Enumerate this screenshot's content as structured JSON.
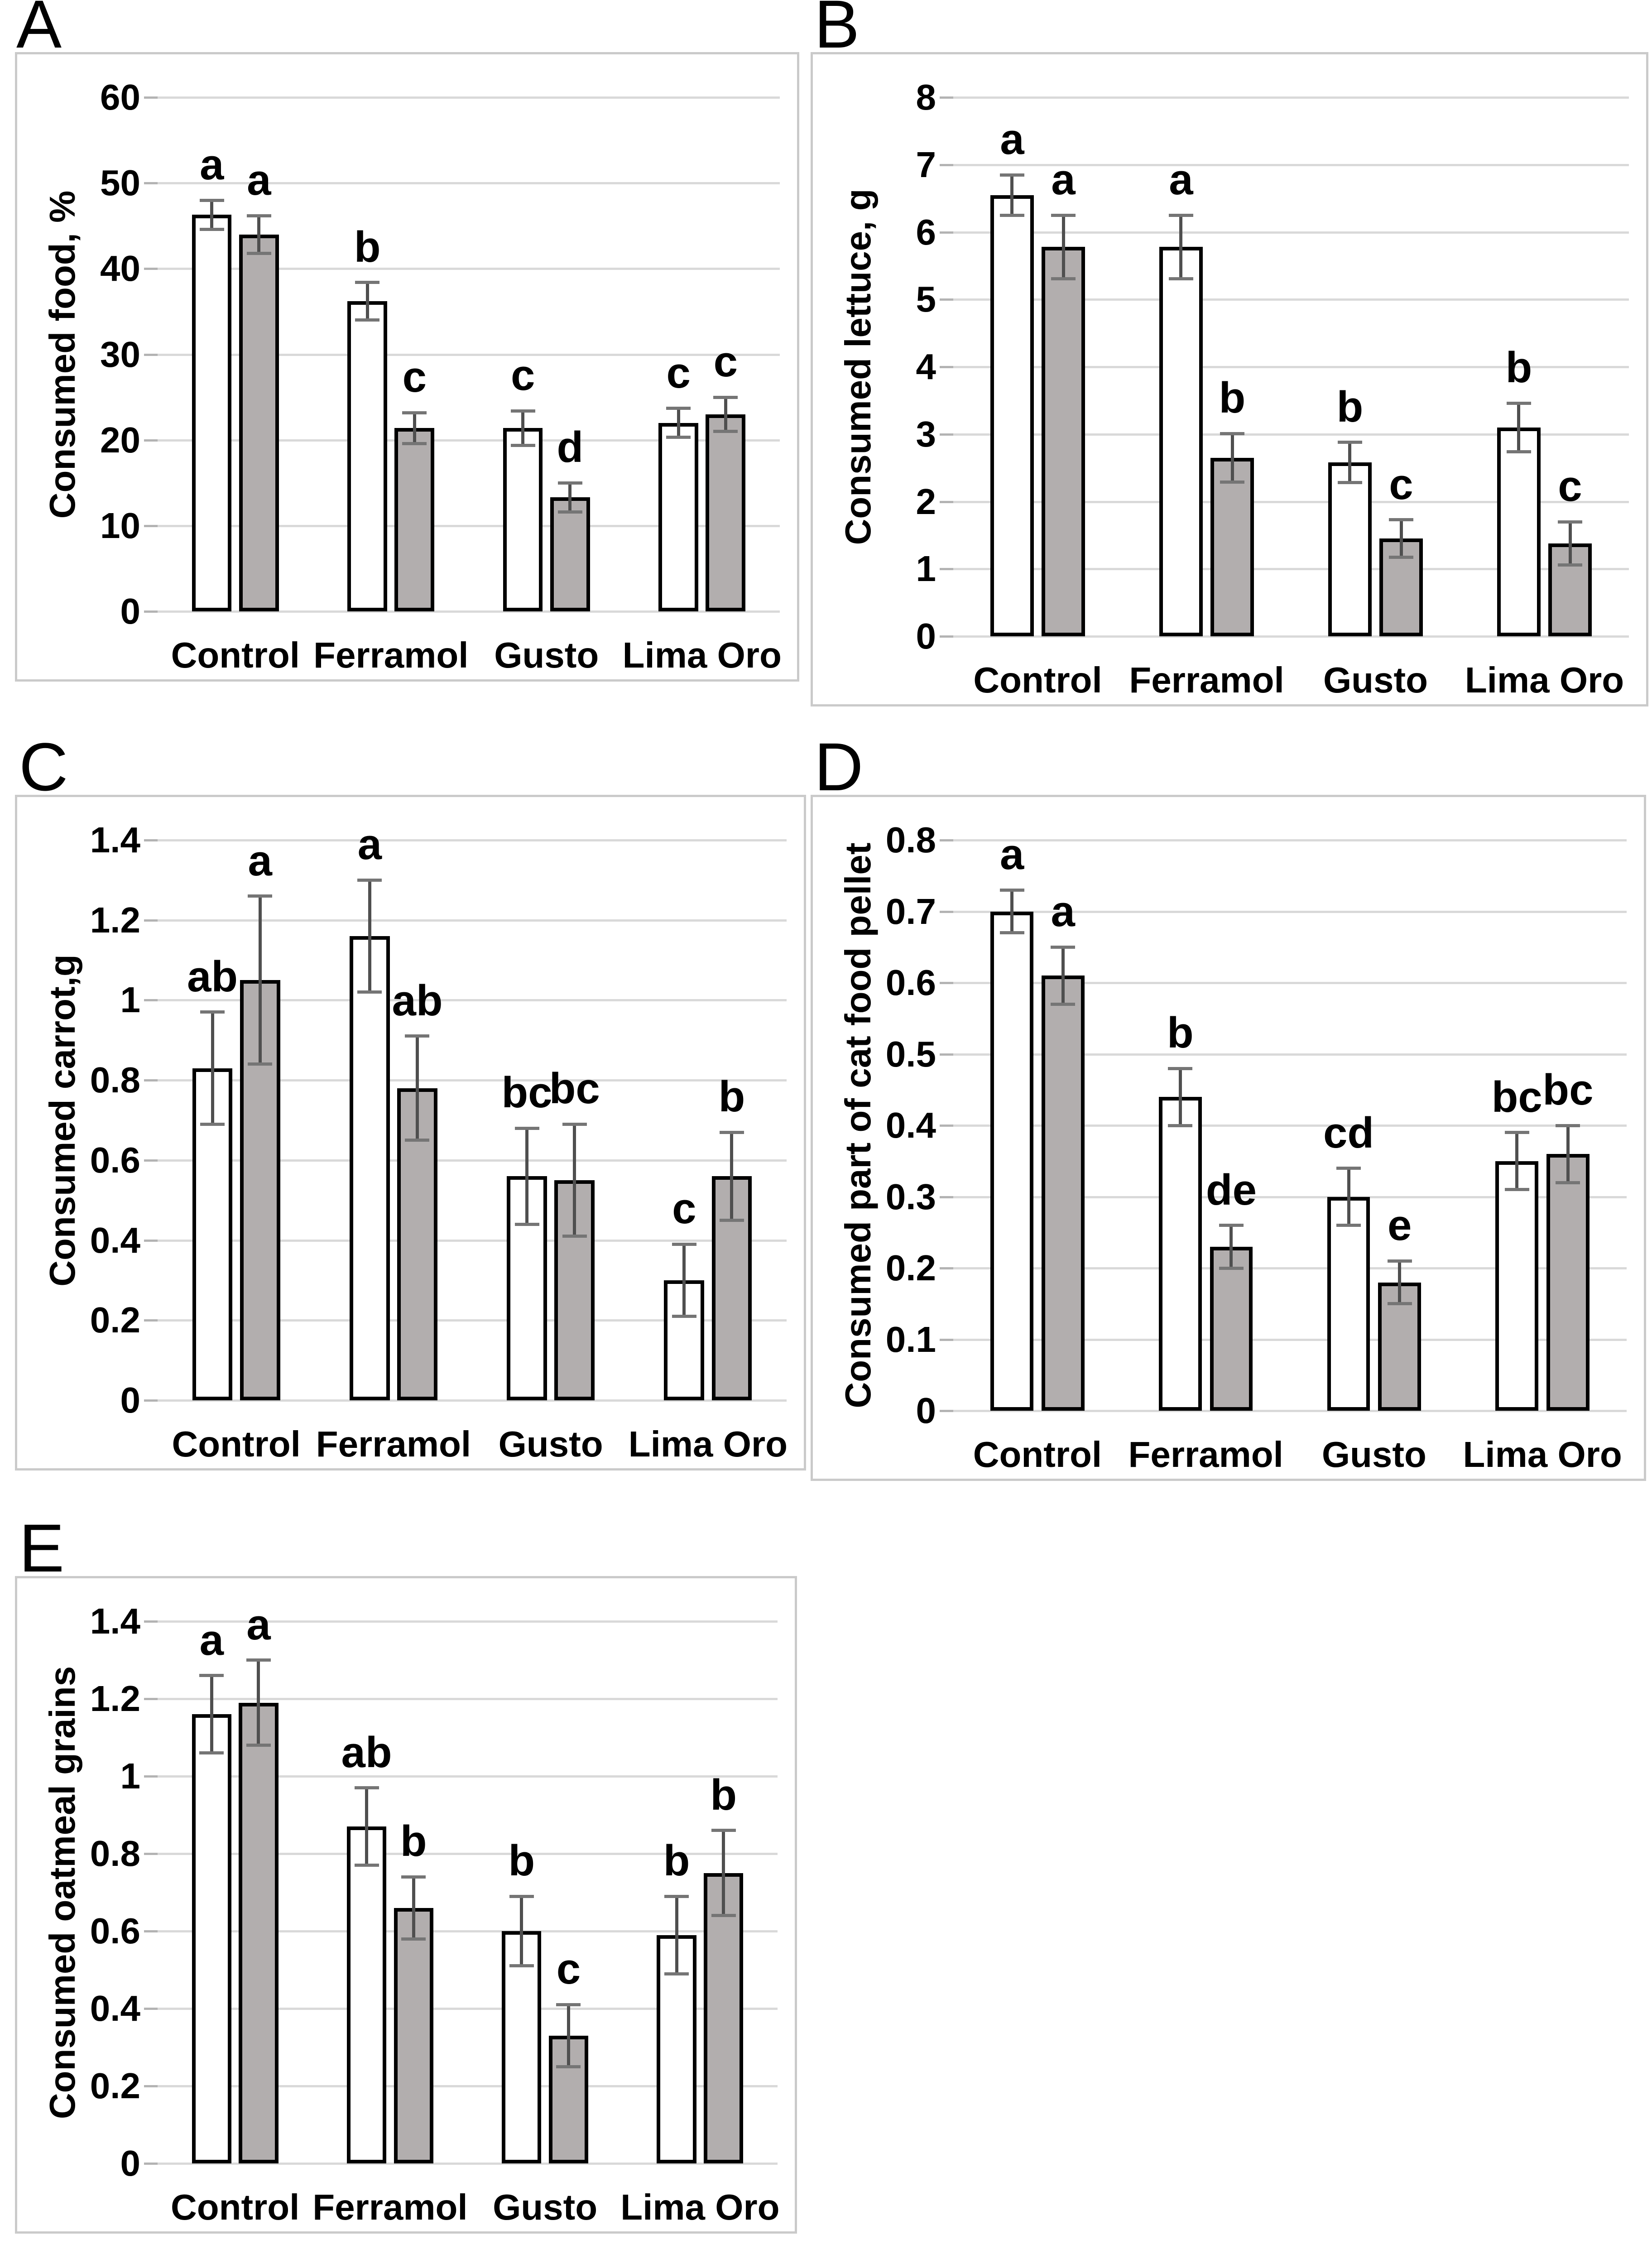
{
  "figure": {
    "panel_letters": [
      "A",
      "B",
      "C",
      "D",
      "E"
    ]
  },
  "style_colors": {
    "background": "#ffffff",
    "text": "#000000",
    "panel_border": "#cacaca",
    "gridline": "#d9d9d9",
    "tick_mark": "#b3b3b3",
    "bar_border": "#000000",
    "bar_white_fill": "#ffffff",
    "bar_gray_fill": "#b2aeae",
    "error_line": "#4f4f4f",
    "error_cap": "#757575"
  },
  "chart_data": [
    {
      "panel": "A",
      "type": "bar",
      "title": "",
      "xlabel": "",
      "ylabel": "Consumed food, %",
      "ylim": [
        0,
        60
      ],
      "ytick_labels": [
        "0",
        "10",
        "20",
        "30",
        "40",
        "50",
        "60"
      ],
      "grid": true,
      "legend": false,
      "categories": [
        "Control",
        "Ferramol",
        "Gusto",
        "Lima Oro"
      ],
      "series": [
        {
          "name": "white bars",
          "fill": "#ffffff",
          "values": [
            46.3,
            36.2,
            21.4,
            22.0
          ],
          "errors": [
            1.7,
            2.2,
            2.0,
            1.7
          ],
          "sig_letters": [
            "a",
            "b",
            "c",
            "c"
          ]
        },
        {
          "name": "gray bars",
          "fill": "#b2aeae",
          "values": [
            44.0,
            21.4,
            13.3,
            23.0
          ],
          "errors": [
            2.2,
            1.8,
            1.7,
            2.0
          ],
          "sig_letters": [
            "a",
            "c",
            "d",
            "c"
          ]
        }
      ]
    },
    {
      "panel": "B",
      "type": "bar",
      "title": "",
      "xlabel": "",
      "ylabel": "Consumed lettuce, g",
      "ylim": [
        0,
        8
      ],
      "ytick_labels": [
        "0",
        "1",
        "2",
        "3",
        "4",
        "5",
        "6",
        "7",
        "8"
      ],
      "grid": true,
      "legend": false,
      "categories": [
        "Control",
        "Ferramol",
        "Gusto",
        "Lima Oro"
      ],
      "series": [
        {
          "name": "white bars",
          "fill": "#ffffff",
          "values": [
            6.55,
            5.78,
            2.58,
            3.1
          ],
          "errors": [
            0.3,
            0.47,
            0.3,
            0.36
          ],
          "sig_letters": [
            "a",
            "a",
            "b",
            "b"
          ]
        },
        {
          "name": "gray bars",
          "fill": "#b2aeae",
          "values": [
            5.78,
            2.65,
            1.45,
            1.38
          ],
          "errors": [
            0.47,
            0.36,
            0.28,
            0.32
          ],
          "sig_letters": [
            "a",
            "b",
            "c",
            "c"
          ]
        }
      ]
    },
    {
      "panel": "C",
      "type": "bar",
      "title": "",
      "xlabel": "",
      "ylabel": "Consumed carrot,g",
      "ylim": [
        0,
        1.4
      ],
      "ytick_labels": [
        "0",
        "0.2",
        "0.4",
        "0.6",
        "0.8",
        "1",
        "1.2",
        "1.4"
      ],
      "grid": true,
      "legend": false,
      "categories": [
        "Control",
        "Ferramol",
        "Gusto",
        "Lima Oro"
      ],
      "series": [
        {
          "name": "white bars",
          "fill": "#ffffff",
          "values": [
            0.83,
            1.16,
            0.56,
            0.3
          ],
          "errors": [
            0.14,
            0.14,
            0.12,
            0.09
          ],
          "sig_letters": [
            "ab",
            "a",
            "bc",
            "c"
          ]
        },
        {
          "name": "gray bars",
          "fill": "#b2aeae",
          "values": [
            1.05,
            0.78,
            0.55,
            0.56
          ],
          "errors": [
            0.21,
            0.13,
            0.14,
            0.11
          ],
          "sig_letters": [
            "a",
            "ab",
            "bc",
            "b"
          ]
        }
      ]
    },
    {
      "panel": "D",
      "type": "bar",
      "title": "",
      "xlabel": "",
      "ylabel": "Consumed part of cat food pellet",
      "ylim": [
        0,
        0.8
      ],
      "ytick_labels": [
        "0",
        "0.1",
        "0.2",
        "0.3",
        "0.4",
        "0.5",
        "0.6",
        "0.7",
        "0.8"
      ],
      "grid": true,
      "legend": false,
      "categories": [
        "Control",
        "Ferramol",
        "Gusto",
        "Lima Oro"
      ],
      "series": [
        {
          "name": "white bars",
          "fill": "#ffffff",
          "values": [
            0.7,
            0.44,
            0.3,
            0.35
          ],
          "errors": [
            0.03,
            0.04,
            0.04,
            0.04
          ],
          "sig_letters": [
            "a",
            "b",
            "cd",
            "bc"
          ]
        },
        {
          "name": "gray bars",
          "fill": "#b2aeae",
          "values": [
            0.61,
            0.23,
            0.18,
            0.36
          ],
          "errors": [
            0.04,
            0.03,
            0.03,
            0.04
          ],
          "sig_letters": [
            "a",
            "de",
            "e",
            "bc"
          ]
        }
      ]
    },
    {
      "panel": "E",
      "type": "bar",
      "title": "",
      "xlabel": "",
      "ylabel": "Consumed oatmeal grains",
      "ylim": [
        0,
        1.4
      ],
      "ytick_labels": [
        "0",
        "0.2",
        "0.4",
        "0.6",
        "0.8",
        "1",
        "1.2",
        "1.4"
      ],
      "grid": true,
      "legend": false,
      "categories": [
        "Control",
        "Ferramol",
        "Gusto",
        "Lima Oro"
      ],
      "series": [
        {
          "name": "white bars",
          "fill": "#ffffff",
          "values": [
            1.16,
            0.87,
            0.6,
            0.59
          ],
          "errors": [
            0.1,
            0.1,
            0.09,
            0.1
          ],
          "sig_letters": [
            "a",
            "ab",
            "b",
            "b"
          ]
        },
        {
          "name": "gray bars",
          "fill": "#b2aeae",
          "values": [
            1.19,
            0.66,
            0.33,
            0.75
          ],
          "errors": [
            0.11,
            0.08,
            0.08,
            0.11
          ],
          "sig_letters": [
            "a",
            "b",
            "c",
            "b"
          ]
        }
      ]
    }
  ]
}
